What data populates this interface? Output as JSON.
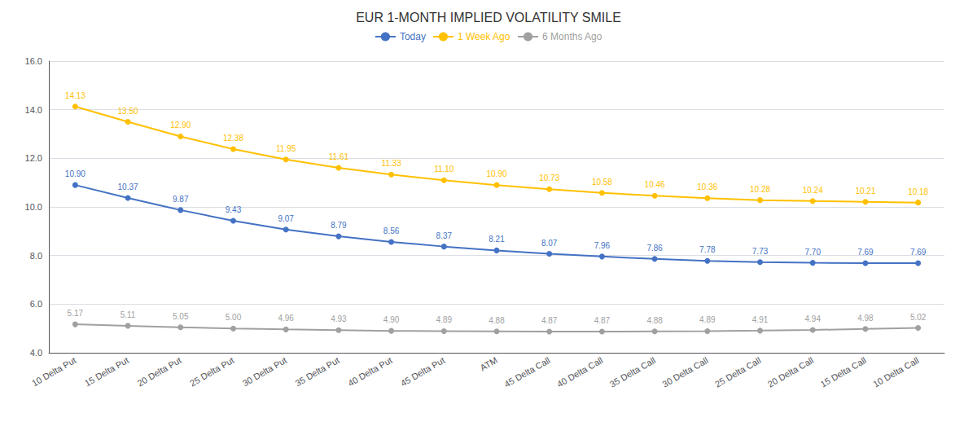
{
  "chart_data": {
    "type": "line",
    "title": "EUR 1-MONTH IMPLIED VOLATILITY SMILE",
    "categories": [
      "10 Delta Put",
      "15 Delta Put",
      "20 Delta Put",
      "25 Delta Put",
      "30 Delta Put",
      "35 Delta Put",
      "40 Delta Put",
      "45 Delta Put",
      "ATM",
      "45 Delta Call",
      "40 Delta Call",
      "35 Delta Call",
      "30 Delta Call",
      "25 Delta Call",
      "20 Delta Call",
      "15 Delta Call",
      "10 Delta Call"
    ],
    "series": [
      {
        "name": "Today",
        "color": "#4472C4",
        "marker": "circle",
        "values": [
          10.9,
          10.37,
          9.87,
          9.43,
          9.07,
          8.79,
          8.56,
          8.37,
          8.21,
          8.07,
          7.96,
          7.86,
          7.78,
          7.73,
          7.7,
          7.69,
          7.69
        ],
        "value_labels": [
          "10.90",
          "10.37",
          "9.87",
          "9.43",
          "9.07",
          "8.79",
          "8.56",
          "8.37",
          "8.21",
          "8.07",
          "7.96",
          "7.86",
          "7.78",
          "7.73",
          "7.70",
          "7.69",
          "7.69"
        ]
      },
      {
        "name": "1 Week Ago",
        "color": "#FFC000",
        "marker": "circle",
        "values": [
          14.13,
          13.5,
          12.9,
          12.38,
          11.95,
          11.61,
          11.33,
          11.1,
          10.9,
          10.73,
          10.58,
          10.46,
          10.36,
          10.28,
          10.24,
          10.21,
          10.18
        ],
        "value_labels": [
          "14.13",
          "13.50",
          "12.90",
          "12.38",
          "11.95",
          "11.61",
          "11.33",
          "11.10",
          "10.90",
          "10.73",
          "10.58",
          "10.46",
          "10.36",
          "10.28",
          "10.24",
          "10.21",
          "10.18"
        ]
      },
      {
        "name": "6 Months Ago",
        "color": "#A0A0A0",
        "marker": "circle",
        "values": [
          5.17,
          5.11,
          5.05,
          5.0,
          4.96,
          4.93,
          4.9,
          4.89,
          4.88,
          4.87,
          4.87,
          4.88,
          4.89,
          4.91,
          4.94,
          4.98,
          5.02
        ],
        "value_labels": [
          "5.17",
          "5.11",
          "5.05",
          "5.00",
          "4.96",
          "4.93",
          "4.90",
          "4.89",
          "4.88",
          "4.87",
          "4.87",
          "4.88",
          "4.89",
          "4.91",
          "4.94",
          "4.98",
          "5.02"
        ]
      }
    ],
    "ylim": [
      4.0,
      16.0
    ],
    "yticks": [
      {
        "value": 4,
        "label": "4.0"
      },
      {
        "value": 6,
        "label": "6.0"
      },
      {
        "value": 8,
        "label": "8.0"
      },
      {
        "value": 10,
        "label": "10.0"
      },
      {
        "value": 12,
        "label": "12.0"
      },
      {
        "value": 14,
        "label": "14.0"
      },
      {
        "value": 16,
        "label": "16.0"
      }
    ],
    "grid": true,
    "legend": "top",
    "data_labels": true
  }
}
